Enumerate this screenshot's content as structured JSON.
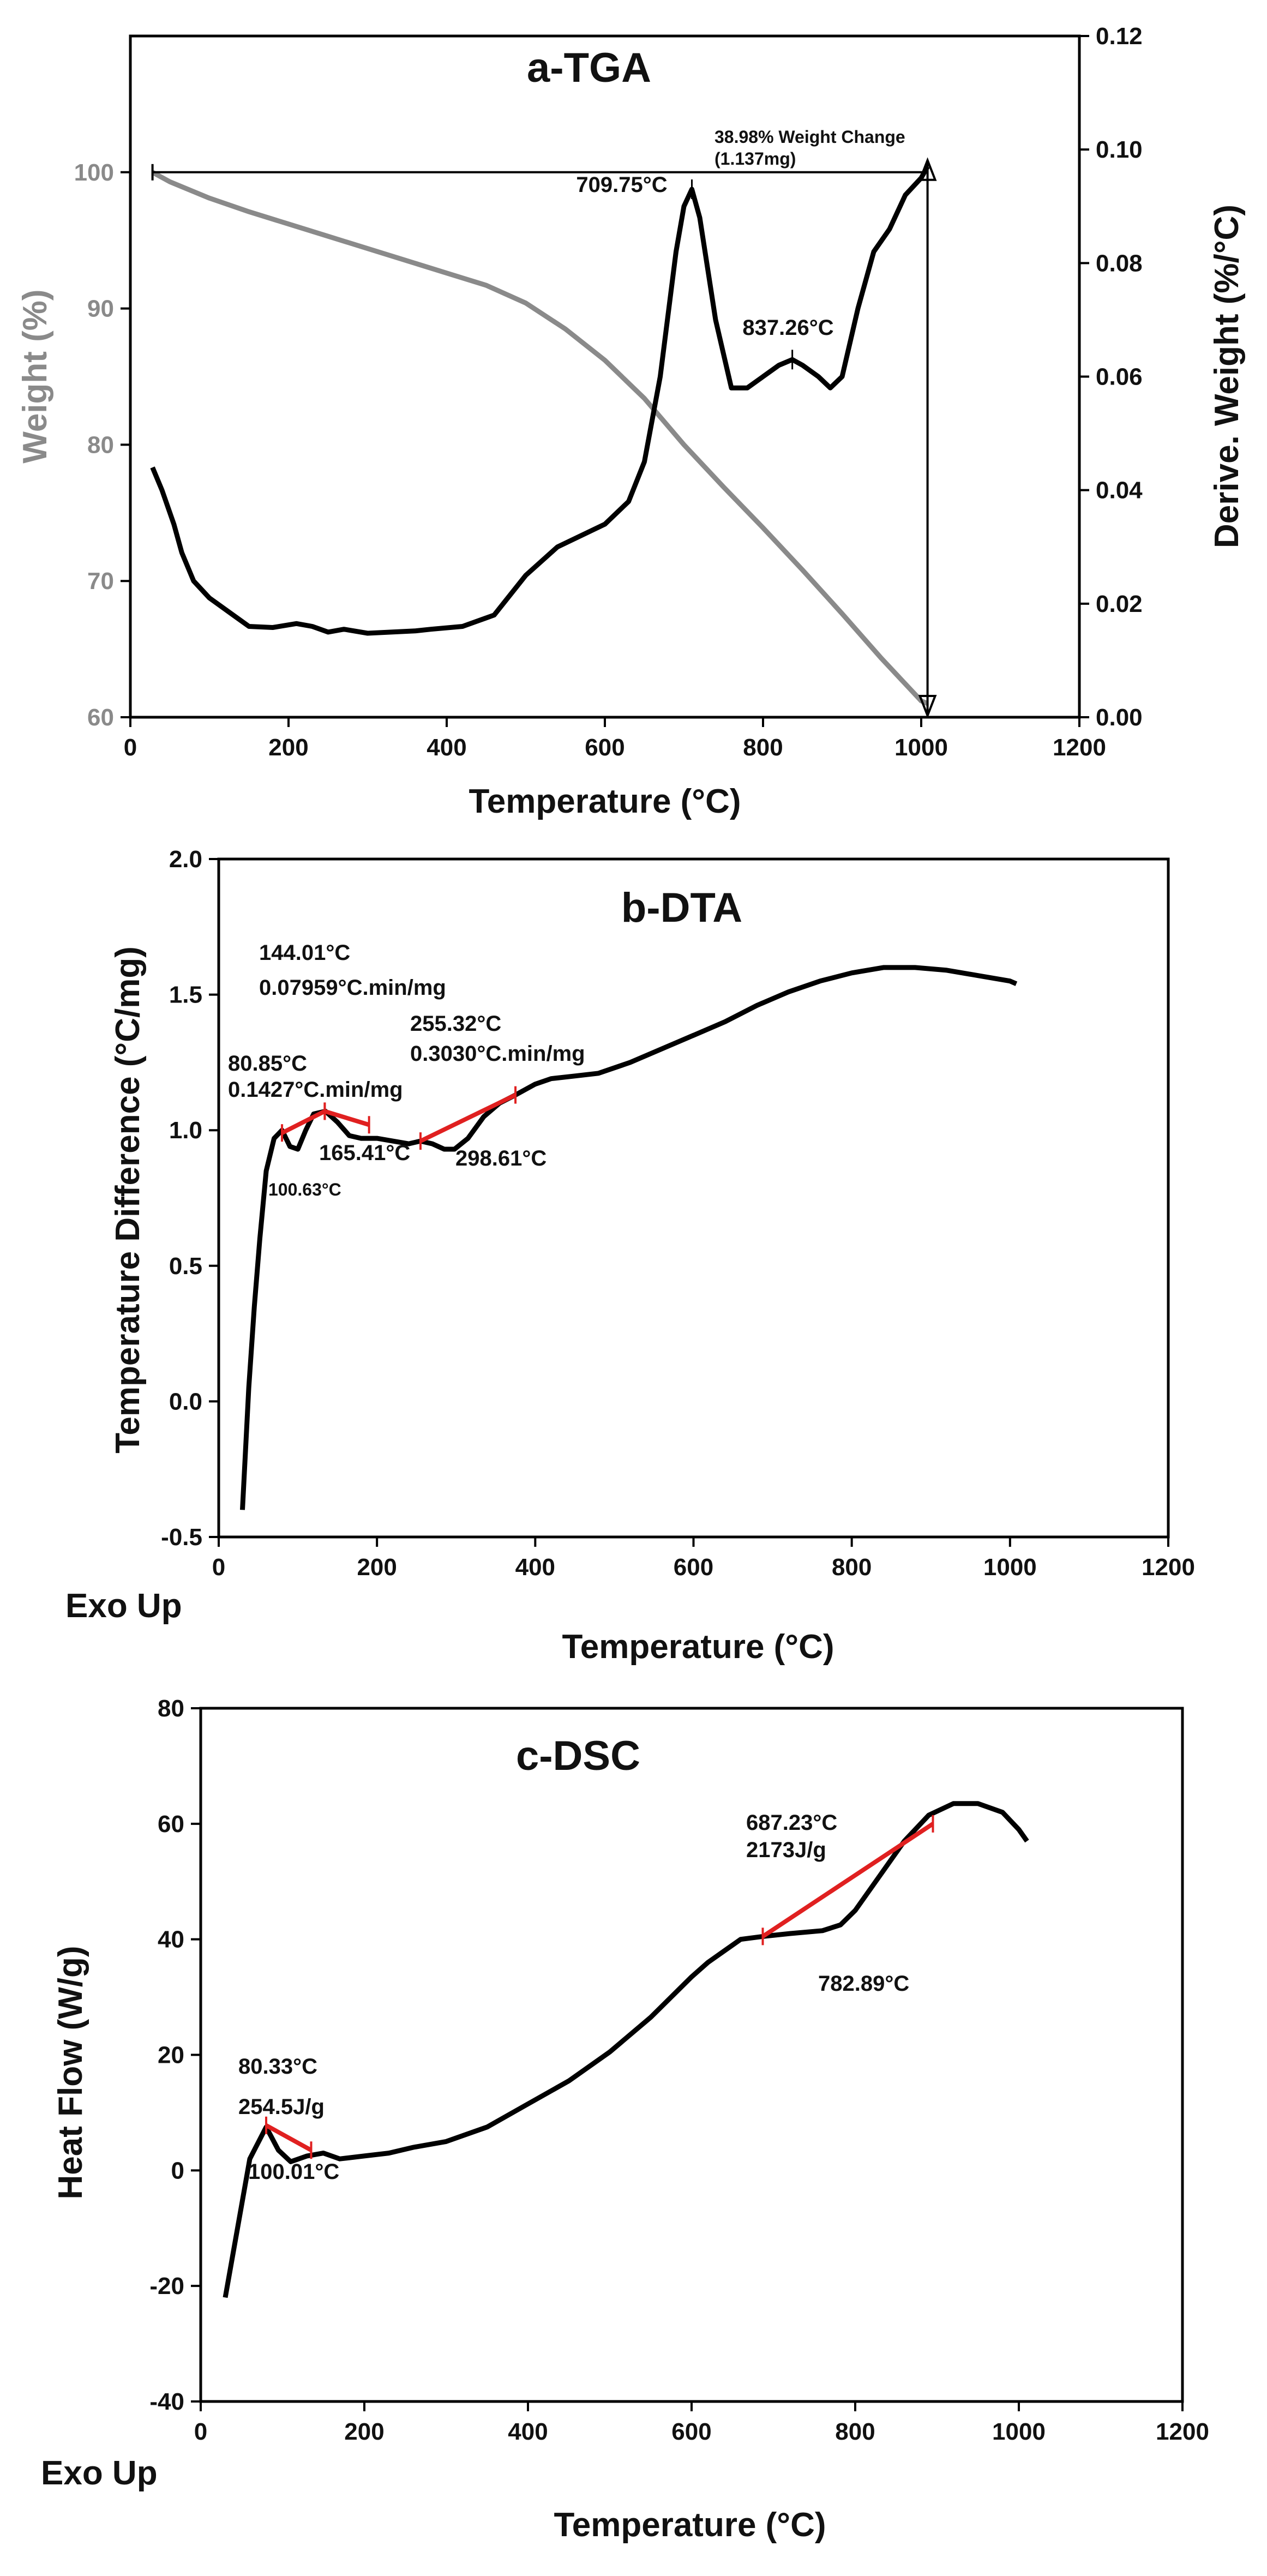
{
  "colors": {
    "curve": "#000000",
    "weight_curve": "#8a8a8a",
    "marker": "#e02020",
    "axis": "#000000",
    "weight_axis_text": "#8a8a8a"
  },
  "chart_data": [
    {
      "type": "line",
      "title": "a-TGA",
      "xlabel": "Temperature (°C)",
      "ylabel": "Weight (%)",
      "y2label": "Derive. Weight (%/°C)",
      "xlim": [
        0,
        1200
      ],
      "ylim": [
        60,
        110
      ],
      "y2lim": [
        0,
        0.12
      ],
      "x_ticks": [
        "0",
        "200",
        "400",
        "600",
        "800",
        "1000",
        "1200"
      ],
      "y_ticks": [
        "60",
        "70",
        "80",
        "90",
        "100"
      ],
      "y2_ticks": [
        "0.00",
        "0.02",
        "0.04",
        "0.06",
        "0.08",
        "0.10",
        "0.12"
      ],
      "grid": false,
      "series": [
        {
          "axis": "left",
          "color": "#8a8a8a",
          "x": [
            28,
            50,
            100,
            150,
            200,
            250,
            300,
            350,
            400,
            450,
            500,
            550,
            600,
            650,
            700,
            750,
            800,
            850,
            900,
            950,
            1000,
            1008
          ],
          "y": [
            100,
            99.3,
            98.1,
            97.1,
            96.2,
            95.3,
            94.4,
            93.5,
            92.6,
            91.7,
            90.4,
            88.5,
            86.2,
            83.4,
            80.0,
            76.9,
            73.9,
            70.8,
            67.6,
            64.3,
            61.2,
            61.0
          ]
        },
        {
          "axis": "right",
          "color": "#000000",
          "x": [
            28,
            40,
            55,
            65,
            80,
            100,
            130,
            150,
            180,
            210,
            230,
            250,
            270,
            300,
            330,
            360,
            380,
            420,
            460,
            500,
            540,
            570,
            600,
            630,
            650,
            670,
            690,
            700,
            710,
            720,
            740,
            760,
            780,
            800,
            820,
            837,
            850,
            870,
            885,
            900,
            920,
            940,
            960,
            980,
            1000,
            1008
          ],
          "y": [
            0.044,
            0.04,
            0.034,
            0.029,
            0.024,
            0.021,
            0.018,
            0.016,
            0.0158,
            0.0165,
            0.016,
            0.015,
            0.0155,
            0.0148,
            0.015,
            0.0152,
            0.0155,
            0.016,
            0.018,
            0.025,
            0.03,
            0.032,
            0.034,
            0.038,
            0.045,
            0.06,
            0.082,
            0.09,
            0.093,
            0.088,
            0.07,
            0.058,
            0.058,
            0.06,
            0.062,
            0.063,
            0.062,
            0.06,
            0.058,
            0.06,
            0.072,
            0.082,
            0.086,
            0.092,
            0.095,
            0.097
          ]
        }
      ],
      "annotations": [
        {
          "text": "709.75°C",
          "x": 710,
          "y2": 0.093
        },
        {
          "text": "837.26°C",
          "x": 837,
          "y2": 0.063
        },
        {
          "text": "38.98% Weight Change",
          "x": 1008,
          "y2": 0.1
        },
        {
          "text": "(1.137mg)",
          "x": 1008,
          "y2": 0.1
        }
      ]
    },
    {
      "type": "line",
      "title": "b-DTA",
      "xlabel": "Temperature (°C)",
      "ylabel": "Temperature Difference (°C/mg)",
      "corner_label": "Exo Up",
      "xlim": [
        0,
        1200
      ],
      "ylim": [
        -0.5,
        2.0
      ],
      "x_ticks": [
        "0",
        "200",
        "400",
        "600",
        "800",
        "1000",
        "1200"
      ],
      "y_ticks": [
        "-0.5",
        "0.0",
        "0.5",
        "1.0",
        "1.5",
        "2.0"
      ],
      "grid": false,
      "series": [
        {
          "color": "#000000",
          "x": [
            30,
            38,
            45,
            52,
            60,
            70,
            80,
            90,
            100,
            110,
            120,
            135,
            150,
            165,
            180,
            200,
            220,
            240,
            255,
            270,
            285,
            298,
            315,
            335,
            355,
            375,
            400,
            420,
            450,
            480,
            520,
            560,
            600,
            640,
            680,
            720,
            760,
            800,
            840,
            880,
            920,
            960,
            1000,
            1008
          ],
          "y": [
            -0.4,
            0.05,
            0.35,
            0.6,
            0.85,
            0.97,
            1.0,
            0.94,
            0.93,
            1.0,
            1.06,
            1.07,
            1.03,
            0.98,
            0.97,
            0.97,
            0.96,
            0.95,
            0.96,
            0.95,
            0.93,
            0.93,
            0.97,
            1.05,
            1.1,
            1.13,
            1.17,
            1.19,
            1.2,
            1.21,
            1.25,
            1.3,
            1.35,
            1.4,
            1.46,
            1.51,
            1.55,
            1.58,
            1.6,
            1.6,
            1.59,
            1.57,
            1.55,
            1.54
          ]
        }
      ],
      "markers": [
        {
          "from_x": 80,
          "from_y": 0.99,
          "to_x": 134,
          "to_y": 1.07
        },
        {
          "from_x": 134,
          "from_y": 1.07,
          "to_x": 190,
          "to_y": 1.02
        },
        {
          "from_x": 255,
          "from_y": 0.96,
          "to_x": 375,
          "to_y": 1.13
        }
      ],
      "annotations": [
        {
          "text": "144.01°C",
          "x": 144,
          "y": 1.6
        },
        {
          "text": "0.07959°C.min/mg",
          "x": 144,
          "y": 1.49
        },
        {
          "text": "80.85°C",
          "x": 80,
          "y": 1.2
        },
        {
          "text": "0.1427°C.min/mg",
          "x": 80,
          "y": 1.1
        },
        {
          "text": "255.32°C",
          "x": 255,
          "y": 1.3
        },
        {
          "text": "0.3030°C.min/mg",
          "x": 255,
          "y": 1.2
        },
        {
          "text": "165.41°C",
          "x": 165,
          "y": 0.93
        },
        {
          "text": "298.61°C",
          "x": 298,
          "y": 0.93
        },
        {
          "text": "100.63°C",
          "x": 100,
          "y": 0.93
        }
      ]
    },
    {
      "type": "line",
      "title": "c-DSC",
      "xlabel": "Temperature (°C)",
      "ylabel": "Heat Flow (W/g)",
      "corner_label": "Exo Up",
      "xlim": [
        0,
        1200
      ],
      "ylim": [
        -40,
        80
      ],
      "x_ticks": [
        "0",
        "200",
        "400",
        "600",
        "800",
        "1000",
        "1200"
      ],
      "y_ticks": [
        "-40",
        "-20",
        "0",
        "20",
        "40",
        "60",
        "80"
      ],
      "grid": false,
      "series": [
        {
          "color": "#000000",
          "x": [
            30,
            45,
            60,
            80,
            95,
            110,
            130,
            150,
            170,
            200,
            230,
            260,
            300,
            350,
            400,
            450,
            500,
            550,
            600,
            620,
            640,
            660,
            687,
            720,
            760,
            782,
            800,
            830,
            860,
            890,
            920,
            950,
            980,
            1000,
            1010
          ],
          "y": [
            -22,
            -10,
            2,
            7.5,
            3.5,
            1.5,
            2.5,
            3.0,
            2.0,
            2.5,
            3.0,
            4.0,
            5.0,
            7.5,
            11.5,
            15.5,
            20.5,
            26.5,
            33.5,
            36,
            38,
            40,
            40.5,
            41,
            41.5,
            42.5,
            45,
            51,
            57,
            61.5,
            63.5,
            63.5,
            62,
            59,
            57
          ]
        }
      ],
      "markers": [
        {
          "from_x": 80,
          "from_y": 7.8,
          "to_x": 135,
          "to_y": 3.5
        },
        {
          "from_x": 687,
          "from_y": 40.5,
          "to_x": 895,
          "to_y": 60
        }
      ],
      "annotations": [
        {
          "text": "80.33°C",
          "x": 80,
          "y": 22
        },
        {
          "text": "254.5J/g",
          "x": 80,
          "y": 15
        },
        {
          "text": "100.01°C",
          "x": 100,
          "y": -5
        },
        {
          "text": "687.23°C",
          "x": 687,
          "y": 56
        },
        {
          "text": "2173J/g",
          "x": 687,
          "y": 49
        },
        {
          "text": "782.89°C",
          "x": 782,
          "y": 38
        }
      ]
    }
  ]
}
